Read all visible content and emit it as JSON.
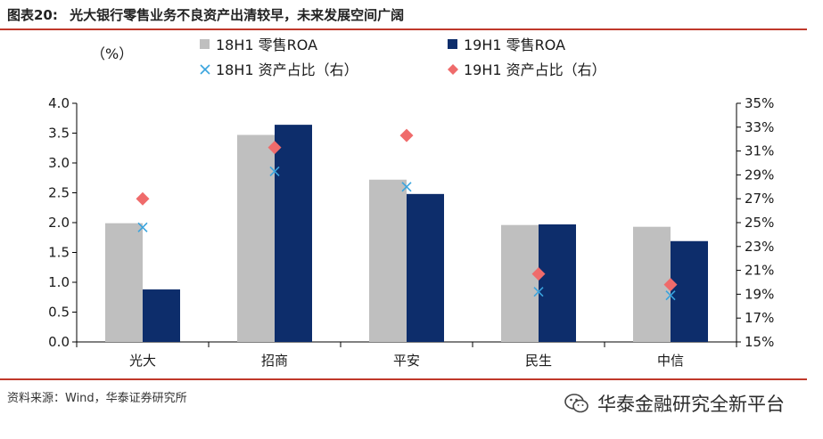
{
  "figure": {
    "label": "图表20:",
    "title": "光大银行零售业务不良资产出清较早，未来发展空间广阔"
  },
  "source": "资料来源：Wind，华泰证券研究所",
  "watermark": "华泰金融研究全新平台",
  "colors": {
    "series_18h1_roa": "#bfbfbf",
    "series_19h1_roa": "#0d2d6b",
    "series_18h1_share": "#3aa4de",
    "series_19h1_share": "#ef6b6b",
    "rule": "#c0392b"
  },
  "chart_data": {
    "type": "bar",
    "categories": [
      "光大",
      "招商",
      "平安",
      "民生",
      "中信"
    ],
    "unit_label": "（%）",
    "y_left": {
      "ylim": [
        0,
        4.0
      ],
      "ticks": [
        "0.0",
        "0.5",
        "1.0",
        "1.5",
        "2.0",
        "2.5",
        "3.0",
        "3.5",
        "4.0"
      ]
    },
    "y_right": {
      "ylim": [
        15,
        35
      ],
      "ticks": [
        "15%",
        "17%",
        "19%",
        "21%",
        "23%",
        "25%",
        "27%",
        "29%",
        "31%",
        "33%",
        "35%"
      ]
    },
    "series": [
      {
        "name": "18H1 零售ROA",
        "type": "bar",
        "axis": "left",
        "marker": "bar",
        "values": [
          1.99,
          3.47,
          2.72,
          1.96,
          1.93
        ]
      },
      {
        "name": "19H1 零售ROA",
        "type": "bar",
        "axis": "left",
        "marker": "bar",
        "values": [
          0.88,
          3.64,
          2.48,
          1.97,
          1.69
        ]
      },
      {
        "name": "18H1 资产占比（右）",
        "type": "scatter",
        "axis": "right",
        "marker": "x",
        "values": [
          24.6,
          29.3,
          28.0,
          19.2,
          18.9
        ]
      },
      {
        "name": "19H1 资产占比（右）",
        "type": "scatter",
        "axis": "right",
        "marker": "diamond",
        "values": [
          27.0,
          31.3,
          32.3,
          20.7,
          19.8
        ]
      }
    ],
    "legend": "top"
  }
}
